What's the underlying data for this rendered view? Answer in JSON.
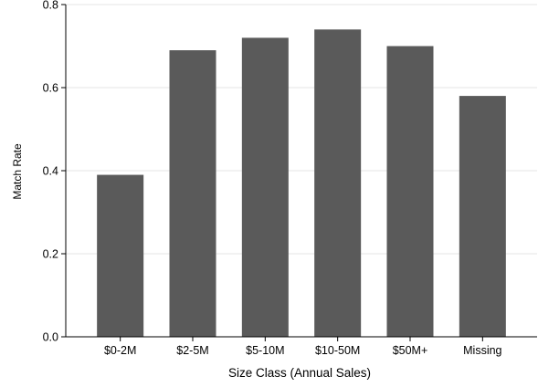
{
  "chart_data": {
    "type": "bar",
    "categories": [
      "$0-2M",
      "$2-5M",
      "$5-10M",
      "$10-50M",
      "$50M+",
      "Missing"
    ],
    "values": [
      0.39,
      0.69,
      0.72,
      0.74,
      0.7,
      0.58
    ],
    "title": "",
    "xlabel": "Size Class (Annual Sales)",
    "ylabel": "Match Rate",
    "ylim": [
      0,
      0.8
    ],
    "yticks": [
      0.0,
      0.2,
      0.4,
      0.6,
      0.8
    ],
    "ytick_labels": [
      "0.0",
      "0.2",
      "0.4",
      "0.6",
      "0.8"
    ],
    "grid": true,
    "legend": "none",
    "colors": {
      "bar": "#5a5a5a",
      "grid": "#e6e6e6",
      "axis": "#000000",
      "background": "#ffffff"
    }
  }
}
